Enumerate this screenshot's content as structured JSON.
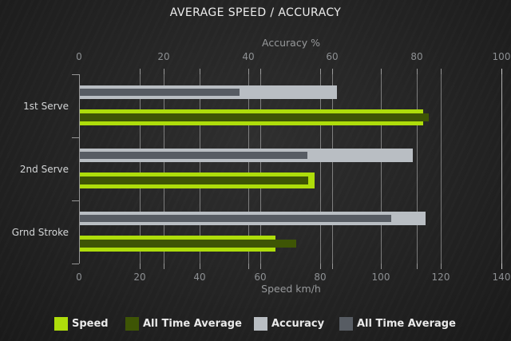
{
  "chart_data": {
    "type": "bar",
    "orientation": "horizontal",
    "title": "AVERAGE SPEED / ACCURACY",
    "categories": [
      "1st Serve",
      "2nd Serve",
      "Grnd Stroke"
    ],
    "axes": {
      "top": {
        "title": "Accuracy %",
        "min": 0,
        "max": 100,
        "ticks": [
          0,
          20,
          40,
          60,
          80,
          100
        ]
      },
      "bottom": {
        "title": "Speed km/h",
        "min": 0,
        "max": 140,
        "ticks": [
          0,
          20,
          40,
          60,
          80,
          100,
          120,
          140
        ]
      }
    },
    "grid": true,
    "legend_position": "bottom",
    "series": [
      {
        "name": "Accuracy",
        "axis": "top",
        "color": "#B9BEC3",
        "values": [
          61,
          79,
          82
        ]
      },
      {
        "name": "All Time Average",
        "axis": "top",
        "color": "#575C63",
        "values": [
          38,
          54,
          74
        ]
      },
      {
        "name": "Speed",
        "axis": "bottom",
        "color": "#AEDD0B",
        "values": [
          114,
          78,
          65
        ]
      },
      {
        "name": "All Time Average",
        "axis": "bottom",
        "color": "#3E5505",
        "values": [
          116,
          76,
          72
        ]
      }
    ]
  },
  "legend": {
    "items": [
      {
        "label": "Speed",
        "color": "#AEDD0B"
      },
      {
        "label": "All Time Average",
        "color": "#3E5505"
      },
      {
        "label": "Accuracy",
        "color": "#B9BEC3"
      },
      {
        "label": "All Time Average",
        "color": "#575C63"
      }
    ]
  }
}
